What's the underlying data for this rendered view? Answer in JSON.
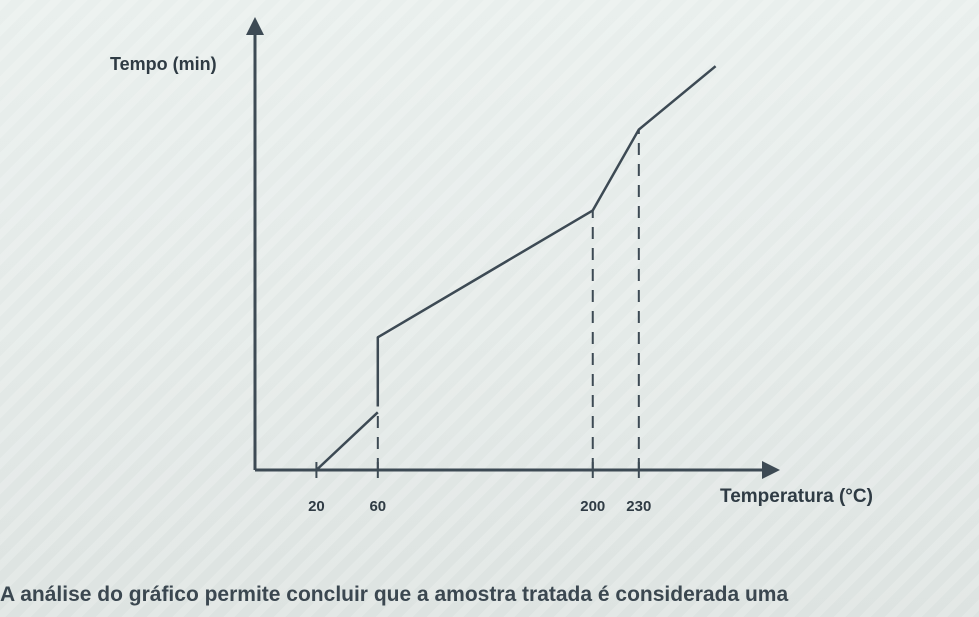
{
  "chart_data": {
    "type": "line",
    "xlabel": "Temperatura (°C)",
    "ylabel": "Tempo (min)",
    "x_ticks": [
      "20",
      "60",
      "200",
      "230"
    ],
    "series": [
      {
        "segments": [
          {
            "points": [
              [
                20,
                0
              ],
              [
                60,
                1
              ]
            ]
          },
          {
            "points": [
              [
                60,
                1.1
              ],
              [
                60,
                2.3
              ],
              [
                200,
                4.5
              ],
              [
                230,
                5.9
              ],
              [
                280,
                7.0
              ]
            ]
          }
        ]
      }
    ],
    "guides": [
      {
        "x": 60,
        "from": 0,
        "to": 1
      },
      {
        "x": 200,
        "from": 0,
        "to": 4.5
      },
      {
        "x": 230,
        "from": 0,
        "to": 5.9
      }
    ],
    "xlim": [
      -20,
      320
    ],
    "ylim": [
      0,
      7.8
    ],
    "grid": false,
    "colors": {
      "line": "#3d4a54",
      "axis": "#3d4a54"
    }
  },
  "caption": "A análise do gráfico permite concluir que a amostra tratada é considerada uma"
}
